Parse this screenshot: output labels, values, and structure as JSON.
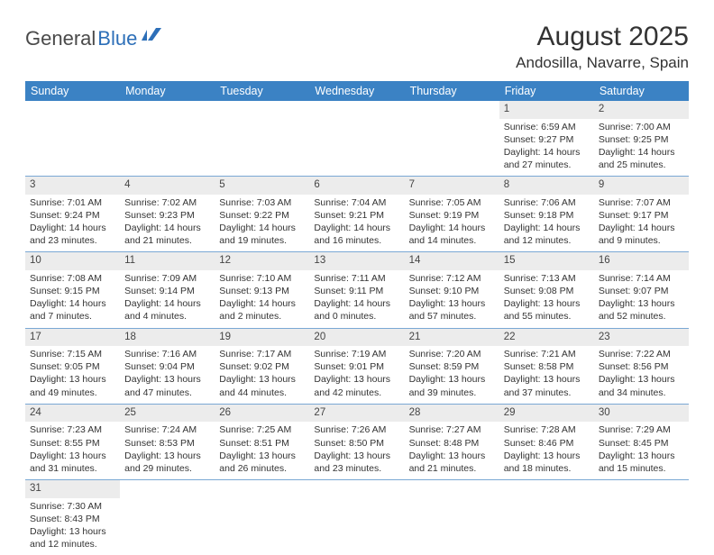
{
  "logo": {
    "text1": "General",
    "text2": "Blue"
  },
  "title": {
    "month_year": "August 2025",
    "location": "Andosilla, Navarre, Spain"
  },
  "colors": {
    "header_bg": "#3b82c4",
    "header_fg": "#ffffff",
    "daynum_bg": "#ececec",
    "row_border": "#7aa8d4",
    "logo_gray": "#4a4a4a",
    "logo_blue": "#2d6fb8"
  },
  "weekdays": [
    "Sunday",
    "Monday",
    "Tuesday",
    "Wednesday",
    "Thursday",
    "Friday",
    "Saturday"
  ],
  "weeks": [
    [
      null,
      null,
      null,
      null,
      null,
      {
        "n": "1",
        "sr": "Sunrise: 6:59 AM",
        "ss": "Sunset: 9:27 PM",
        "dl": "Daylight: 14 hours and 27 minutes."
      },
      {
        "n": "2",
        "sr": "Sunrise: 7:00 AM",
        "ss": "Sunset: 9:25 PM",
        "dl": "Daylight: 14 hours and 25 minutes."
      }
    ],
    [
      {
        "n": "3",
        "sr": "Sunrise: 7:01 AM",
        "ss": "Sunset: 9:24 PM",
        "dl": "Daylight: 14 hours and 23 minutes."
      },
      {
        "n": "4",
        "sr": "Sunrise: 7:02 AM",
        "ss": "Sunset: 9:23 PM",
        "dl": "Daylight: 14 hours and 21 minutes."
      },
      {
        "n": "5",
        "sr": "Sunrise: 7:03 AM",
        "ss": "Sunset: 9:22 PM",
        "dl": "Daylight: 14 hours and 19 minutes."
      },
      {
        "n": "6",
        "sr": "Sunrise: 7:04 AM",
        "ss": "Sunset: 9:21 PM",
        "dl": "Daylight: 14 hours and 16 minutes."
      },
      {
        "n": "7",
        "sr": "Sunrise: 7:05 AM",
        "ss": "Sunset: 9:19 PM",
        "dl": "Daylight: 14 hours and 14 minutes."
      },
      {
        "n": "8",
        "sr": "Sunrise: 7:06 AM",
        "ss": "Sunset: 9:18 PM",
        "dl": "Daylight: 14 hours and 12 minutes."
      },
      {
        "n": "9",
        "sr": "Sunrise: 7:07 AM",
        "ss": "Sunset: 9:17 PM",
        "dl": "Daylight: 14 hours and 9 minutes."
      }
    ],
    [
      {
        "n": "10",
        "sr": "Sunrise: 7:08 AM",
        "ss": "Sunset: 9:15 PM",
        "dl": "Daylight: 14 hours and 7 minutes."
      },
      {
        "n": "11",
        "sr": "Sunrise: 7:09 AM",
        "ss": "Sunset: 9:14 PM",
        "dl": "Daylight: 14 hours and 4 minutes."
      },
      {
        "n": "12",
        "sr": "Sunrise: 7:10 AM",
        "ss": "Sunset: 9:13 PM",
        "dl": "Daylight: 14 hours and 2 minutes."
      },
      {
        "n": "13",
        "sr": "Sunrise: 7:11 AM",
        "ss": "Sunset: 9:11 PM",
        "dl": "Daylight: 14 hours and 0 minutes."
      },
      {
        "n": "14",
        "sr": "Sunrise: 7:12 AM",
        "ss": "Sunset: 9:10 PM",
        "dl": "Daylight: 13 hours and 57 minutes."
      },
      {
        "n": "15",
        "sr": "Sunrise: 7:13 AM",
        "ss": "Sunset: 9:08 PM",
        "dl": "Daylight: 13 hours and 55 minutes."
      },
      {
        "n": "16",
        "sr": "Sunrise: 7:14 AM",
        "ss": "Sunset: 9:07 PM",
        "dl": "Daylight: 13 hours and 52 minutes."
      }
    ],
    [
      {
        "n": "17",
        "sr": "Sunrise: 7:15 AM",
        "ss": "Sunset: 9:05 PM",
        "dl": "Daylight: 13 hours and 49 minutes."
      },
      {
        "n": "18",
        "sr": "Sunrise: 7:16 AM",
        "ss": "Sunset: 9:04 PM",
        "dl": "Daylight: 13 hours and 47 minutes."
      },
      {
        "n": "19",
        "sr": "Sunrise: 7:17 AM",
        "ss": "Sunset: 9:02 PM",
        "dl": "Daylight: 13 hours and 44 minutes."
      },
      {
        "n": "20",
        "sr": "Sunrise: 7:19 AM",
        "ss": "Sunset: 9:01 PM",
        "dl": "Daylight: 13 hours and 42 minutes."
      },
      {
        "n": "21",
        "sr": "Sunrise: 7:20 AM",
        "ss": "Sunset: 8:59 PM",
        "dl": "Daylight: 13 hours and 39 minutes."
      },
      {
        "n": "22",
        "sr": "Sunrise: 7:21 AM",
        "ss": "Sunset: 8:58 PM",
        "dl": "Daylight: 13 hours and 37 minutes."
      },
      {
        "n": "23",
        "sr": "Sunrise: 7:22 AM",
        "ss": "Sunset: 8:56 PM",
        "dl": "Daylight: 13 hours and 34 minutes."
      }
    ],
    [
      {
        "n": "24",
        "sr": "Sunrise: 7:23 AM",
        "ss": "Sunset: 8:55 PM",
        "dl": "Daylight: 13 hours and 31 minutes."
      },
      {
        "n": "25",
        "sr": "Sunrise: 7:24 AM",
        "ss": "Sunset: 8:53 PM",
        "dl": "Daylight: 13 hours and 29 minutes."
      },
      {
        "n": "26",
        "sr": "Sunrise: 7:25 AM",
        "ss": "Sunset: 8:51 PM",
        "dl": "Daylight: 13 hours and 26 minutes."
      },
      {
        "n": "27",
        "sr": "Sunrise: 7:26 AM",
        "ss": "Sunset: 8:50 PM",
        "dl": "Daylight: 13 hours and 23 minutes."
      },
      {
        "n": "28",
        "sr": "Sunrise: 7:27 AM",
        "ss": "Sunset: 8:48 PM",
        "dl": "Daylight: 13 hours and 21 minutes."
      },
      {
        "n": "29",
        "sr": "Sunrise: 7:28 AM",
        "ss": "Sunset: 8:46 PM",
        "dl": "Daylight: 13 hours and 18 minutes."
      },
      {
        "n": "30",
        "sr": "Sunrise: 7:29 AM",
        "ss": "Sunset: 8:45 PM",
        "dl": "Daylight: 13 hours and 15 minutes."
      }
    ],
    [
      {
        "n": "31",
        "sr": "Sunrise: 7:30 AM",
        "ss": "Sunset: 8:43 PM",
        "dl": "Daylight: 13 hours and 12 minutes."
      },
      null,
      null,
      null,
      null,
      null,
      null
    ]
  ]
}
